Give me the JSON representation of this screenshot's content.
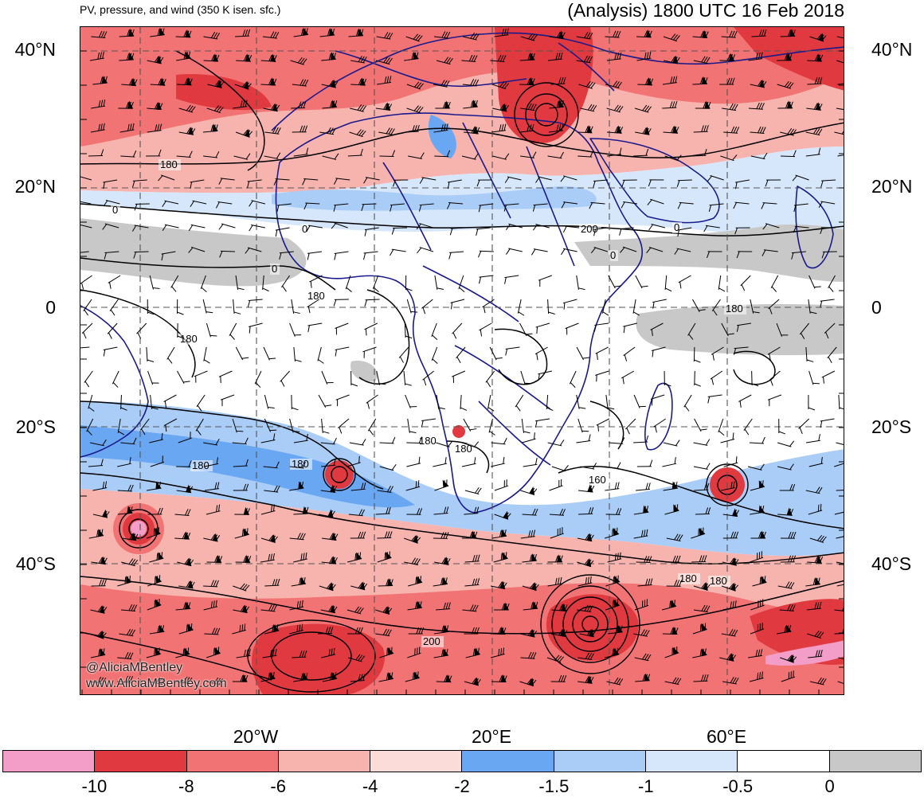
{
  "header": {
    "left_title": "PV, pressure, and wind (350 K isen. sfc.)",
    "right_title": "(Analysis) 1800 UTC 16 Feb 2018"
  },
  "map": {
    "latitude_labels": [
      "40°N",
      "20°N",
      "0",
      "20°S",
      "40°S"
    ],
    "longitude_labels": [
      "20°W",
      "20°E",
      "60°E"
    ],
    "contour_labels": [
      "180",
      "180",
      "180",
      "180",
      "180",
      "180",
      "180",
      "180",
      "180",
      "180",
      "200",
      "200",
      "160",
      "0",
      "0",
      "0",
      "0",
      "0"
    ],
    "watermark_handle": "@AliciaMBentley",
    "watermark_site": "www.AliciaMBentley.com",
    "colors": {
      "land_border": "#1a1a8c",
      "contour": "#000000",
      "neutral_fill": "#ffffff"
    }
  },
  "colorbar": {
    "ticks": [
      "-10",
      "-8",
      "-6",
      "-4",
      "-2",
      "-1.5",
      "-1",
      "-0.5",
      "0"
    ],
    "colors": [
      "#f29ec8",
      "#e0393f",
      "#f27373",
      "#f7b3ad",
      "#fbdcd8",
      "#6aa7f2",
      "#a9cdf7",
      "#d7e7fb",
      "#ffffff",
      "#c8c8c8"
    ]
  }
}
